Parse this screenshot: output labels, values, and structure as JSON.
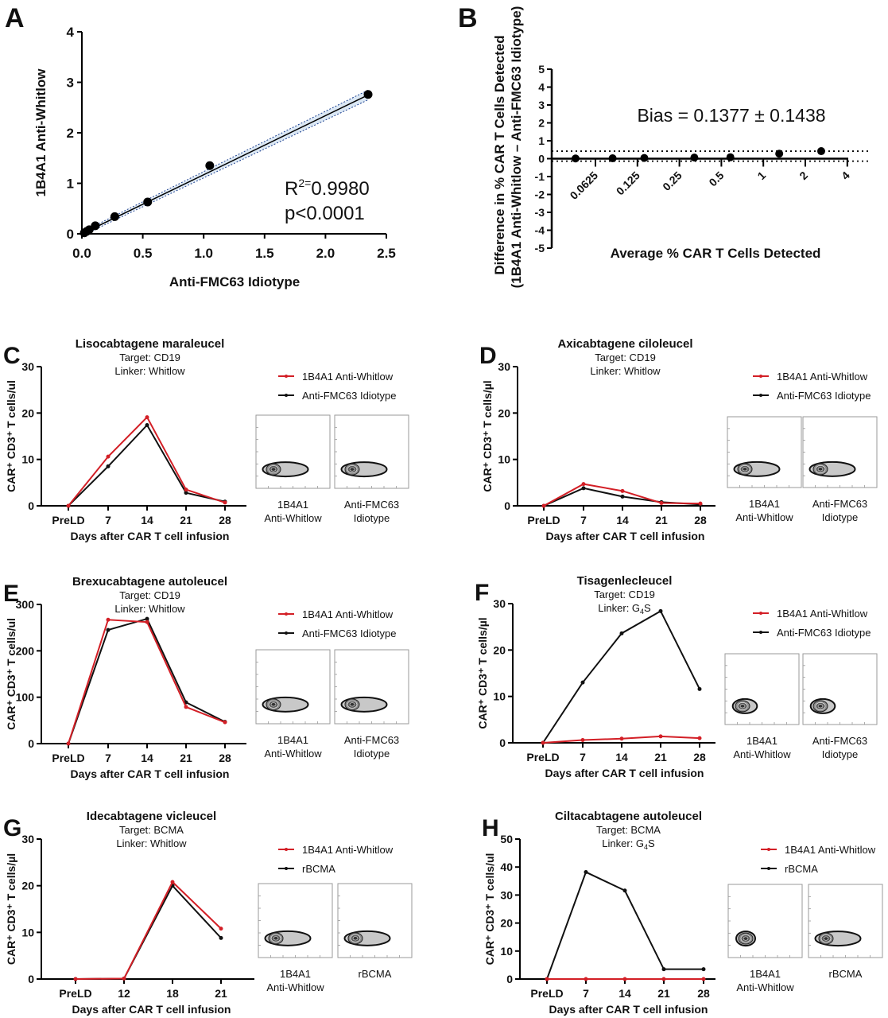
{
  "colors": {
    "red": "#d31f26",
    "black": "#111111",
    "ci_fill": "#dbe8f5",
    "ci_line": "#1a3f8f"
  },
  "chart_data": [
    {
      "id": "A",
      "type": "scatter",
      "letter": "A",
      "xlabel": "Anti-FMC63 Idiotype",
      "ylabel": "1B4A1 Anti-Whitlow",
      "xlim": [
        0,
        2.5
      ],
      "ylim": [
        0,
        4
      ],
      "xticks": [
        "0.0",
        "0.5",
        "1.0",
        "1.5",
        "2.0",
        "2.5"
      ],
      "xtick_values": [
        0,
        0.5,
        1,
        1.5,
        2,
        2.5
      ],
      "yticks": [
        "0",
        "1",
        "2",
        "3",
        "4"
      ],
      "ytick_values": [
        0,
        1,
        2,
        3,
        4
      ],
      "points": [
        [
          0.02,
          0.02
        ],
        [
          0.04,
          0.05
        ],
        [
          0.06,
          0.08
        ],
        [
          0.11,
          0.16
        ],
        [
          0.27,
          0.34
        ],
        [
          0.54,
          0.63
        ],
        [
          1.05,
          1.35
        ],
        [
          2.35,
          2.76
        ]
      ],
      "fit": {
        "slope": 1.17,
        "intercept": 0.0,
        "ci_band": 0.06
      },
      "annotation": {
        "r2_label": "R",
        "r2_sup": "2=",
        "r2_value": "0.9980",
        "p": "p<0.0001"
      }
    },
    {
      "id": "B",
      "type": "scatter",
      "letter": "B",
      "title_annotation": "Bias = 0.1377 ± 0.1438",
      "xlabel": "Average % CAR T Cells Detected",
      "ylabel_line1": "Difference in % CAR T Cells Detected",
      "ylabel_line2": "(1B4A1 Anti-Whitlow – Anti-FMC63 Idiotype)",
      "xscale": "log2",
      "xlim": [
        0.04,
        4
      ],
      "ylim": [
        -5,
        5
      ],
      "xticks": [
        "0.0625",
        "0.125",
        "0.25",
        "0.5",
        "1",
        "2",
        "4"
      ],
      "xtick_values": [
        0.0625,
        0.125,
        0.25,
        0.5,
        1,
        2,
        4
      ],
      "yticks": [
        "5",
        "4",
        "3",
        "2",
        "1",
        "0",
        "-1",
        "-2",
        "-3",
        "-4",
        "-5"
      ],
      "ytick_values": [
        5,
        4,
        3,
        2,
        1,
        0,
        -1,
        -2,
        -3,
        -4,
        -5
      ],
      "points": [
        [
          0.045,
          0.01
        ],
        [
          0.083,
          0.02
        ],
        [
          0.14,
          0.04
        ],
        [
          0.32,
          0.06
        ],
        [
          0.58,
          0.08
        ],
        [
          1.3,
          0.28
        ],
        [
          2.6,
          0.42
        ]
      ],
      "bias": 0.1377,
      "loa": [
        -0.14,
        0.42
      ]
    },
    {
      "id": "C",
      "type": "line",
      "letter": "C",
      "title": "Lisocabtagene maraleucel",
      "target": "Target: CD19",
      "linker_prefix": "Linker: Whitlow",
      "linker_sub": "",
      "linker_suffix": "",
      "ylabel": "CAR⁺ CD3⁺ T cells/ul",
      "xlabel": "Days after CAR T cell infusion",
      "categories": [
        "PreLD",
        "7",
        "14",
        "21",
        "28"
      ],
      "ylim": [
        0,
        30
      ],
      "yticks": [
        0,
        10,
        20,
        30
      ],
      "series": [
        {
          "name": "1B4A1 Anti-Whitlow",
          "color": "red",
          "values": [
            0,
            10.6,
            19.1,
            3.5,
            0.7
          ]
        },
        {
          "name": "Anti-FMC63 Idiotype",
          "color": "black",
          "values": [
            0,
            8.5,
            17.4,
            2.8,
            0.9
          ]
        }
      ],
      "flow_labels": [
        [
          "1B4A1",
          "Anti-Whitlow"
        ],
        [
          "Anti-FMC63",
          "Idiotype"
        ]
      ]
    },
    {
      "id": "D",
      "type": "line",
      "letter": "D",
      "title": "Axicabtagene ciloleucel",
      "target": "Target: CD19",
      "linker_prefix": "Linker: Whitlow",
      "linker_sub": "",
      "linker_suffix": "",
      "ylabel": "CAR⁺ CD3⁺ T cells/µl",
      "xlabel": "Days after CAR T cell infusion",
      "categories": [
        "PreLD",
        "7",
        "14",
        "21",
        "28"
      ],
      "ylim": [
        0,
        30
      ],
      "yticks": [
        0,
        10,
        20,
        30
      ],
      "series": [
        {
          "name": "1B4A1 Anti-Whitlow",
          "color": "red",
          "values": [
            0,
            4.7,
            3.2,
            0.6,
            0.5
          ]
        },
        {
          "name": "Anti-FMC63 Idiotype",
          "color": "black",
          "values": [
            0,
            3.8,
            2.0,
            0.8,
            0.3
          ]
        }
      ],
      "flow_labels": [
        [
          "1B4A1",
          "Anti-Whitlow"
        ],
        [
          "Anti-FMC63",
          "Idiotype"
        ]
      ]
    },
    {
      "id": "E",
      "type": "line",
      "letter": "E",
      "title": "Brexucabtagene autoleucel",
      "target": "Target: CD19",
      "linker_prefix": "Linker: Whitlow",
      "linker_sub": "",
      "linker_suffix": "",
      "ylabel": "CAR⁺ CD3⁺ T cells/ul",
      "xlabel": "Days after CAR T cell infusion",
      "categories": [
        "PreLD",
        "7",
        "14",
        "21",
        "28"
      ],
      "ylim": [
        0,
        300
      ],
      "yticks": [
        0,
        100,
        200,
        300
      ],
      "series": [
        {
          "name": "1B4A1 Anti-Whitlow",
          "color": "red",
          "values": [
            0,
            267,
            262,
            79,
            46
          ]
        },
        {
          "name": "Anti-FMC63 Idiotype",
          "color": "black",
          "values": [
            0,
            245,
            269,
            89,
            47
          ]
        }
      ],
      "flow_labels": [
        [
          "1B4A1",
          "Anti-Whitlow"
        ],
        [
          "Anti-FMC63",
          "Idiotype"
        ]
      ]
    },
    {
      "id": "F",
      "type": "line",
      "letter": "F",
      "title": "Tisagenlecleucel",
      "target": "Target: CD19",
      "linker_prefix": "Linker: G",
      "linker_sub": "4",
      "linker_suffix": "S",
      "ylabel": "CAR⁺ CD3⁺ T cells/µl",
      "xlabel": "Days after CAR T cell infusion",
      "categories": [
        "PreLD",
        "7",
        "14",
        "21",
        "28"
      ],
      "ylim": [
        0,
        30
      ],
      "yticks": [
        0,
        10,
        20,
        30
      ],
      "series": [
        {
          "name": "1B4A1 Anti-Whitlow",
          "color": "red",
          "values": [
            0,
            0.6,
            0.9,
            1.4,
            1.0
          ]
        },
        {
          "name": "Anti-FMC63 Idiotype",
          "color": "black",
          "values": [
            0,
            13.0,
            23.6,
            28.4,
            11.6
          ]
        }
      ],
      "flow_labels": [
        [
          "1B4A1",
          "Anti-Whitlow"
        ],
        [
          "Anti-FMC63",
          "Idiotype"
        ]
      ]
    },
    {
      "id": "G",
      "type": "line",
      "letter": "G",
      "title": "Idecabtagene vicleucel",
      "target": "Target: BCMA",
      "linker_prefix": "Linker: Whitlow",
      "linker_sub": "",
      "linker_suffix": "",
      "ylabel": "CAR⁺ CD3⁺ T cells/µl",
      "xlabel": "Days after CAR T cell infusion",
      "categories": [
        "PreLD",
        "12",
        "18",
        "21"
      ],
      "ylim": [
        0,
        30
      ],
      "yticks": [
        0,
        10,
        20,
        30
      ],
      "series": [
        {
          "name": "1B4A1 Anti-Whitlow",
          "color": "red",
          "values": [
            0,
            0.1,
            20.8,
            10.8
          ]
        },
        {
          "name": "rBCMA",
          "color": "black",
          "values": [
            0,
            0.1,
            20.0,
            8.8
          ]
        }
      ],
      "flow_labels": [
        [
          "1B4A1",
          "Anti-Whitlow"
        ],
        [
          "rBCMA",
          ""
        ]
      ]
    },
    {
      "id": "H",
      "type": "line",
      "letter": "H",
      "title": "Ciltacabtagene autoleucel",
      "target": "Target: BCMA",
      "linker_prefix": "Linker: G",
      "linker_sub": "4",
      "linker_suffix": "S",
      "ylabel": "CAR⁺ CD3⁺ T cells/ul",
      "xlabel": "Days after CAR T cell infusion",
      "categories": [
        "PreLD",
        "7",
        "14",
        "21",
        "28"
      ],
      "ylim": [
        0,
        50
      ],
      "yticks": [
        0,
        10,
        20,
        30,
        40,
        50
      ],
      "series": [
        {
          "name": "1B4A1 Anti-Whitlow",
          "color": "red",
          "values": [
            0,
            0,
            0,
            0,
            0
          ]
        },
        {
          "name": "rBCMA",
          "color": "black",
          "values": [
            0,
            38.2,
            31.6,
            3.5,
            3.5
          ]
        }
      ],
      "flow_labels": [
        [
          "1B4A1",
          "Anti-Whitlow"
        ],
        [
          "rBCMA",
          ""
        ]
      ]
    }
  ]
}
